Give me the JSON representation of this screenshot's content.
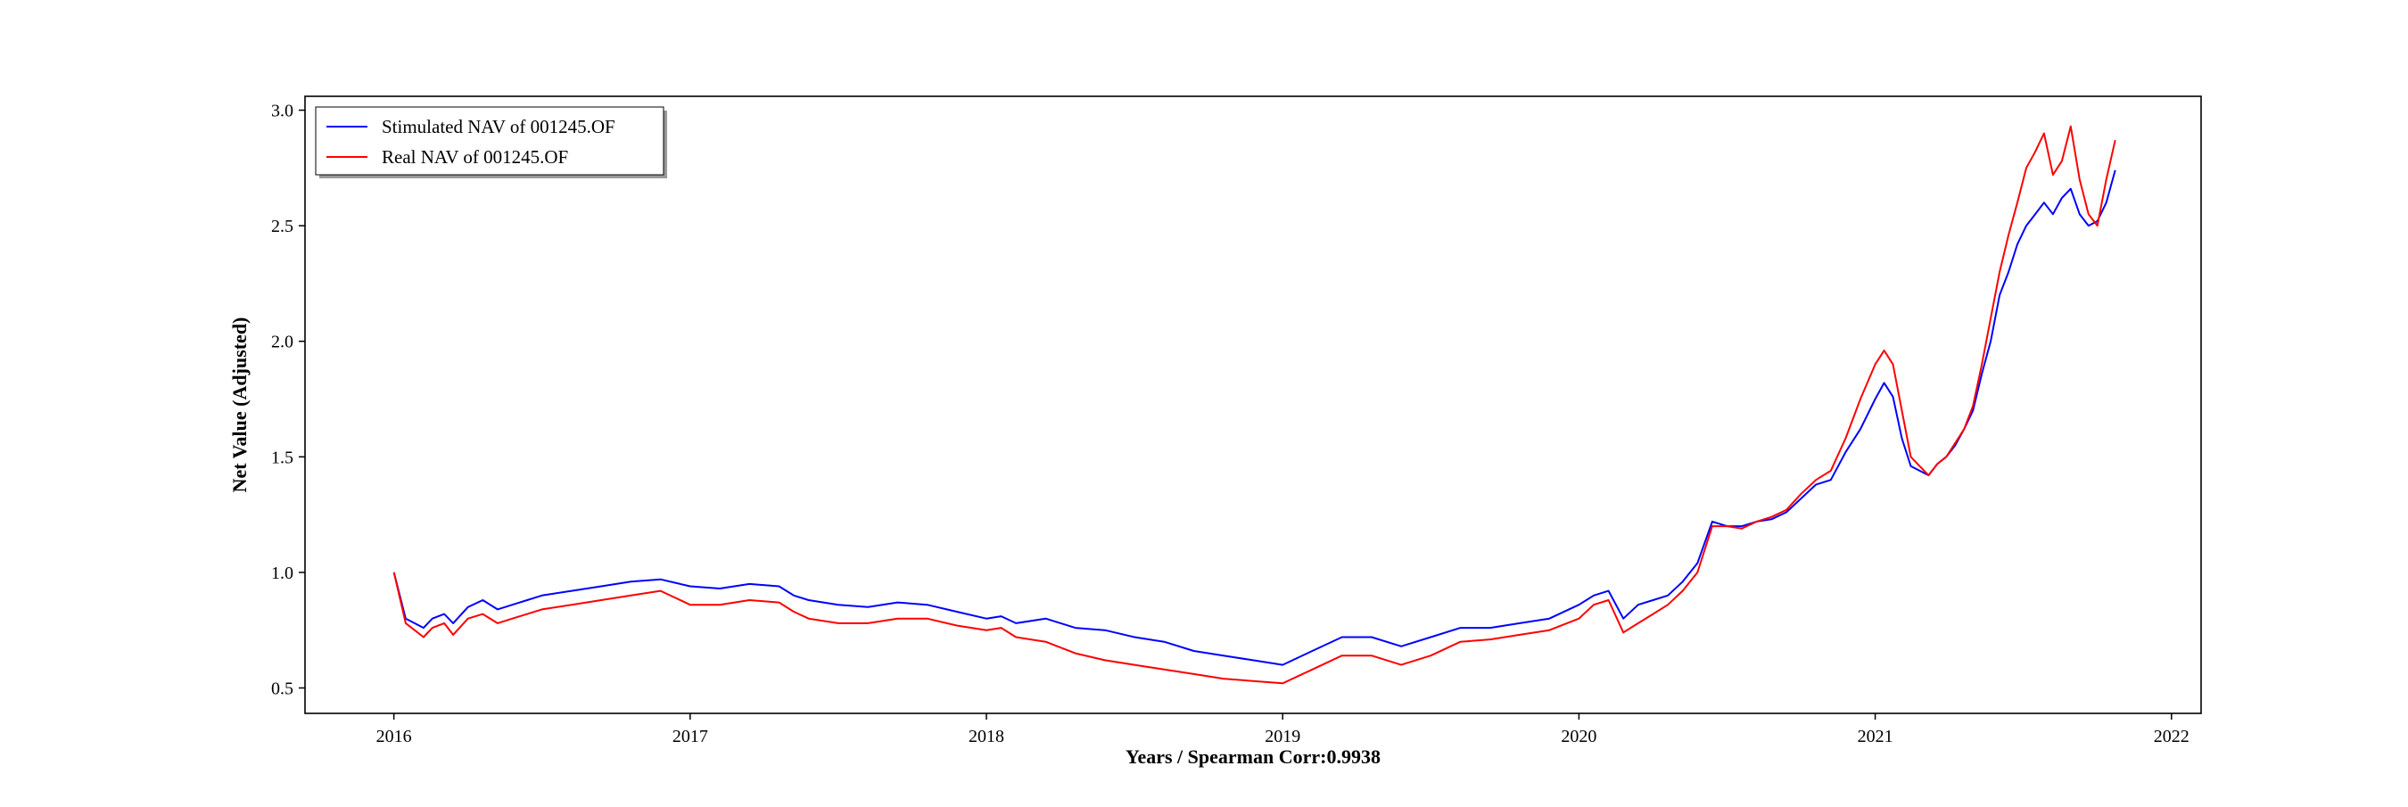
{
  "chart_data": {
    "type": "line",
    "title": "",
    "xlabel": "Years / Spearman Corr:0.9938",
    "ylabel": "Net Value (Adjusted)",
    "xlim": [
      2015.7,
      2022.1
    ],
    "ylim": [
      0.39,
      3.06
    ],
    "xticks": [
      2016,
      2017,
      2018,
      2019,
      2020,
      2021,
      2022
    ],
    "yticks": [
      0.5,
      1.0,
      1.5,
      2.0,
      2.5,
      3.0
    ],
    "xtick_labels": [
      "2016",
      "2017",
      "2018",
      "2019",
      "2020",
      "2021",
      "2022"
    ],
    "ytick_labels": [
      "0.5",
      "1.0",
      "1.5",
      "2.0",
      "2.5",
      "3.0"
    ],
    "legend_position": "top-left",
    "grid": false,
    "series": [
      {
        "name": "Stimulated NAV of 001245.OF",
        "color": "#0000ff",
        "x": [
          2016.0,
          2016.04,
          2016.07,
          2016.1,
          2016.13,
          2016.17,
          2016.2,
          2016.25,
          2016.3,
          2016.35,
          2016.4,
          2016.45,
          2016.5,
          2016.6,
          2016.7,
          2016.8,
          2016.9,
          2017.0,
          2017.1,
          2017.2,
          2017.3,
          2017.35,
          2017.4,
          2017.5,
          2017.6,
          2017.7,
          2017.8,
          2017.9,
          2018.0,
          2018.05,
          2018.1,
          2018.2,
          2018.3,
          2018.4,
          2018.5,
          2018.6,
          2018.7,
          2018.8,
          2018.9,
          2019.0,
          2019.1,
          2019.2,
          2019.3,
          2019.4,
          2019.5,
          2019.6,
          2019.7,
          2019.8,
          2019.9,
          2020.0,
          2020.05,
          2020.1,
          2020.15,
          2020.2,
          2020.25,
          2020.3,
          2020.35,
          2020.4,
          2020.45,
          2020.5,
          2020.55,
          2020.6,
          2020.65,
          2020.7,
          2020.75,
          2020.8,
          2020.85,
          2020.9,
          2020.95,
          2021.0,
          2021.03,
          2021.06,
          2021.09,
          2021.12,
          2021.15,
          2021.18,
          2021.21,
          2021.24,
          2021.27,
          2021.3,
          2021.33,
          2021.36,
          2021.39,
          2021.42,
          2021.45,
          2021.48,
          2021.51,
          2021.54,
          2021.57,
          2021.6,
          2021.63,
          2021.66,
          2021.69,
          2021.72,
          2021.75,
          2021.78,
          2021.81
        ],
        "y": [
          1.0,
          0.8,
          0.78,
          0.76,
          0.8,
          0.82,
          0.78,
          0.85,
          0.88,
          0.84,
          0.86,
          0.88,
          0.9,
          0.92,
          0.94,
          0.96,
          0.97,
          0.94,
          0.93,
          0.95,
          0.94,
          0.9,
          0.88,
          0.86,
          0.85,
          0.87,
          0.86,
          0.83,
          0.8,
          0.81,
          0.78,
          0.8,
          0.76,
          0.75,
          0.72,
          0.7,
          0.66,
          0.64,
          0.62,
          0.6,
          0.66,
          0.72,
          0.72,
          0.68,
          0.72,
          0.76,
          0.76,
          0.78,
          0.8,
          0.86,
          0.9,
          0.92,
          0.8,
          0.86,
          0.88,
          0.9,
          0.96,
          1.04,
          1.22,
          1.2,
          1.2,
          1.22,
          1.23,
          1.26,
          1.32,
          1.38,
          1.4,
          1.52,
          1.62,
          1.75,
          1.82,
          1.76,
          1.58,
          1.46,
          1.44,
          1.42,
          1.47,
          1.5,
          1.55,
          1.62,
          1.7,
          1.86,
          2.0,
          2.2,
          2.3,
          2.42,
          2.5,
          2.55,
          2.6,
          2.55,
          2.62,
          2.66,
          2.55,
          2.5,
          2.52,
          2.6,
          2.74
        ]
      },
      {
        "name": "Real NAV of 001245.OF",
        "color": "#ff0000",
        "x": [
          2016.0,
          2016.04,
          2016.07,
          2016.1,
          2016.13,
          2016.17,
          2016.2,
          2016.25,
          2016.3,
          2016.35,
          2016.4,
          2016.45,
          2016.5,
          2016.6,
          2016.7,
          2016.8,
          2016.9,
          2017.0,
          2017.1,
          2017.2,
          2017.3,
          2017.35,
          2017.4,
          2017.5,
          2017.6,
          2017.7,
          2017.8,
          2017.9,
          2018.0,
          2018.05,
          2018.1,
          2018.2,
          2018.3,
          2018.4,
          2018.5,
          2018.6,
          2018.7,
          2018.8,
          2018.9,
          2019.0,
          2019.1,
          2019.2,
          2019.3,
          2019.4,
          2019.5,
          2019.6,
          2019.7,
          2019.8,
          2019.9,
          2020.0,
          2020.05,
          2020.1,
          2020.15,
          2020.2,
          2020.25,
          2020.3,
          2020.35,
          2020.4,
          2020.45,
          2020.5,
          2020.55,
          2020.6,
          2020.65,
          2020.7,
          2020.75,
          2020.8,
          2020.85,
          2020.9,
          2020.95,
          2021.0,
          2021.03,
          2021.06,
          2021.09,
          2021.12,
          2021.15,
          2021.18,
          2021.21,
          2021.24,
          2021.27,
          2021.3,
          2021.33,
          2021.36,
          2021.39,
          2021.42,
          2021.45,
          2021.48,
          2021.51,
          2021.54,
          2021.57,
          2021.6,
          2021.63,
          2021.66,
          2021.69,
          2021.72,
          2021.75,
          2021.78,
          2021.81
        ],
        "y": [
          1.0,
          0.78,
          0.75,
          0.72,
          0.76,
          0.78,
          0.73,
          0.8,
          0.82,
          0.78,
          0.8,
          0.82,
          0.84,
          0.86,
          0.88,
          0.9,
          0.92,
          0.86,
          0.86,
          0.88,
          0.87,
          0.83,
          0.8,
          0.78,
          0.78,
          0.8,
          0.8,
          0.77,
          0.75,
          0.76,
          0.72,
          0.7,
          0.65,
          0.62,
          0.6,
          0.58,
          0.56,
          0.54,
          0.53,
          0.52,
          0.58,
          0.64,
          0.64,
          0.6,
          0.64,
          0.7,
          0.71,
          0.73,
          0.75,
          0.8,
          0.86,
          0.88,
          0.74,
          0.78,
          0.82,
          0.86,
          0.92,
          1.0,
          1.2,
          1.2,
          1.19,
          1.22,
          1.24,
          1.27,
          1.34,
          1.4,
          1.44,
          1.58,
          1.75,
          1.9,
          1.96,
          1.9,
          1.7,
          1.5,
          1.46,
          1.42,
          1.47,
          1.5,
          1.56,
          1.62,
          1.72,
          1.9,
          2.1,
          2.3,
          2.46,
          2.6,
          2.75,
          2.82,
          2.9,
          2.72,
          2.78,
          2.93,
          2.7,
          2.55,
          2.5,
          2.7,
          2.87
        ]
      }
    ]
  }
}
